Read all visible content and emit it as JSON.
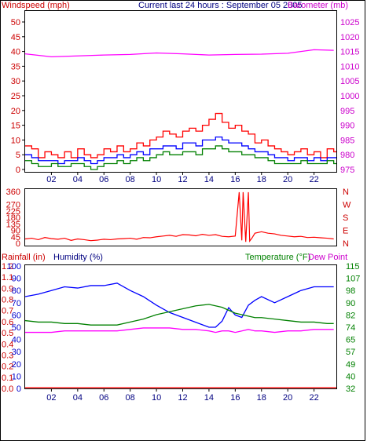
{
  "header": {
    "title": "Current last 24 hours : September 05 2005",
    "windspeed_label": "Windspeed (mph)",
    "barometer_label": "Barometer (mb)"
  },
  "colors": {
    "windspeed": "#ff0000",
    "gust": "#ff0000",
    "avg_wind": "#0000ff",
    "low_wind": "#008000",
    "barometer": "#ff00ff",
    "direction": "#ff0000",
    "humidity": "#0000ff",
    "temperature": "#008000",
    "dewpoint": "#ff00ff",
    "rainfall": "#ff0000",
    "x_axis": "#000080"
  },
  "chart_data": [
    {
      "type": "line",
      "name": "wind-and-barometer",
      "x_ticks": [
        "02",
        "04",
        "06",
        "08",
        "10",
        "12",
        "14",
        "16",
        "18",
        "20",
        "22"
      ],
      "x_hours": [
        2,
        4,
        6,
        8,
        10,
        12,
        14,
        16,
        18,
        20,
        22
      ],
      "x_range": [
        0,
        23.7
      ],
      "y_left": {
        "label": "Windspeed (mph)",
        "range": [
          0,
          50
        ],
        "ticks": [
          0,
          5,
          10,
          15,
          20,
          25,
          30,
          35,
          40,
          45,
          50
        ]
      },
      "y_right": {
        "label": "Barometer (mb)",
        "range": [
          975,
          1025
        ],
        "ticks": [
          975,
          980,
          985,
          990,
          995,
          1000,
          1005,
          1010,
          1015,
          1020,
          1025
        ]
      },
      "series": [
        {
          "name": "",
          "color": "#ff0000",
          "axis": "left",
          "style": "step",
          "x": [
            0,
            0.5,
            1,
            1.5,
            2,
            2.5,
            3,
            3.5,
            4,
            4.5,
            5,
            5.5,
            6,
            6.5,
            7,
            7.5,
            8,
            8.5,
            9,
            9.5,
            10,
            10.5,
            11,
            11.5,
            12,
            12.5,
            13,
            13.5,
            14,
            14.5,
            15,
            15.5,
            16,
            16.5,
            17,
            17.5,
            18,
            18.5,
            19,
            19.5,
            20,
            20.5,
            21,
            21.5,
            22,
            22.5,
            23,
            23.5
          ],
          "values": [
            8,
            7,
            4,
            6,
            5,
            4,
            6,
            4,
            7,
            5,
            4,
            5,
            7,
            6,
            8,
            6,
            7,
            9,
            8,
            10,
            11,
            13,
            12,
            11,
            13,
            14,
            13,
            15,
            17,
            19,
            16,
            14,
            15,
            13,
            12,
            9,
            10,
            8,
            7,
            6,
            5,
            6,
            7,
            5,
            6,
            4,
            7,
            6
          ]
        },
        {
          "name": "",
          "color": "#0000ff",
          "axis": "left",
          "style": "step",
          "x": [
            0,
            0.5,
            1,
            1.5,
            2,
            2.5,
            3,
            3.5,
            4,
            4.5,
            5,
            5.5,
            6,
            6.5,
            7,
            7.5,
            8,
            8.5,
            9,
            9.5,
            10,
            10.5,
            11,
            11.5,
            12,
            12.5,
            13,
            13.5,
            14,
            14.5,
            15,
            15.5,
            16,
            16.5,
            17,
            17.5,
            18,
            18.5,
            19,
            19.5,
            20,
            20.5,
            21,
            21.5,
            22,
            22.5,
            23,
            23.5
          ],
          "values": [
            5,
            4,
            3,
            3,
            3,
            2,
            3,
            3,
            4,
            3,
            2,
            3,
            4,
            4,
            5,
            4,
            5,
            6,
            5,
            7,
            7,
            8,
            8,
            7,
            9,
            9,
            8,
            10,
            10,
            11,
            10,
            9,
            9,
            8,
            7,
            6,
            6,
            5,
            4,
            4,
            3,
            4,
            4,
            3,
            4,
            3,
            4,
            4
          ]
        },
        {
          "name": "",
          "color": "#008000",
          "axis": "left",
          "style": "step",
          "x": [
            0,
            0.5,
            1,
            1.5,
            2,
            2.5,
            3,
            3.5,
            4,
            4.5,
            5,
            5.5,
            6,
            6.5,
            7,
            7.5,
            8,
            8.5,
            9,
            9.5,
            10,
            10.5,
            11,
            11.5,
            12,
            12.5,
            13,
            13.5,
            14,
            14.5,
            15,
            15.5,
            16,
            16.5,
            17,
            17.5,
            18,
            18.5,
            19,
            19.5,
            20,
            20.5,
            21,
            21.5,
            22,
            22.5,
            23,
            23.5
          ],
          "values": [
            3,
            2,
            1,
            1,
            2,
            1,
            1,
            2,
            2,
            1,
            0,
            1,
            2,
            2,
            3,
            2,
            3,
            4,
            3,
            4,
            5,
            6,
            5,
            5,
            6,
            6,
            5,
            7,
            7,
            8,
            7,
            6,
            6,
            5,
            5,
            4,
            4,
            3,
            2,
            2,
            2,
            2,
            3,
            2,
            2,
            2,
            3,
            2
          ]
        },
        {
          "name": "",
          "color": "#ff00ff",
          "axis": "right",
          "style": "line",
          "x": [
            0,
            2,
            4,
            6,
            8,
            10,
            12,
            14,
            16,
            18,
            20,
            22,
            23.5
          ],
          "values": [
            1014.2,
            1013.2,
            1013.5,
            1013.8,
            1014,
            1014.5,
            1014.2,
            1013.8,
            1014,
            1014.1,
            1014.4,
            1015.6,
            1015.4
          ]
        }
      ]
    },
    {
      "type": "line",
      "name": "wind-direction",
      "x_ticks": [],
      "x_range": [
        0,
        23.7
      ],
      "y_left": {
        "range": [
          0,
          360
        ],
        "ticks": [
          0,
          45,
          90,
          135,
          180,
          225,
          270,
          360
        ]
      },
      "y_right": {
        "labels": [
          "N",
          "E",
          "S",
          "W",
          "N"
        ],
        "values": [
          0,
          90,
          180,
          270,
          360
        ]
      },
      "series": [
        {
          "name": "",
          "color": "#ff0000",
          "x": [
            0,
            0.5,
            1,
            1.5,
            2,
            2.5,
            3,
            3.5,
            4,
            4.5,
            5,
            5.5,
            6,
            6.5,
            7,
            7.5,
            8,
            8.5,
            9,
            9.5,
            10,
            10.5,
            11,
            11.5,
            12,
            12.5,
            13,
            13.5,
            14,
            14.5,
            15,
            15.5,
            16,
            16.3,
            16.5,
            16.6,
            16.8,
            17,
            17.1,
            17.3,
            17.5,
            18,
            18.5,
            19,
            19.5,
            20,
            20.5,
            21,
            21.5,
            22,
            22.5,
            23,
            23.5
          ],
          "values": [
            30,
            35,
            25,
            40,
            32,
            28,
            35,
            20,
            30,
            25,
            18,
            22,
            28,
            25,
            30,
            32,
            35,
            28,
            40,
            38,
            45,
            50,
            55,
            48,
            60,
            58,
            52,
            62,
            55,
            60,
            48,
            45,
            50,
            355,
            20,
            355,
            10,
            355,
            15,
            40,
            70,
            80,
            70,
            65,
            55,
            50,
            45,
            48,
            40,
            42,
            38,
            35,
            30
          ]
        }
      ]
    },
    {
      "type": "line",
      "name": "humidity-temperature",
      "x_ticks": [
        "02",
        "04",
        "06",
        "08",
        "10",
        "12",
        "14",
        "16",
        "18",
        "20",
        "22"
      ],
      "x_hours": [
        2,
        4,
        6,
        8,
        10,
        12,
        14,
        16,
        18,
        20,
        22
      ],
      "x_range": [
        0,
        23.7
      ],
      "y_rain": {
        "label": "Rainfall (in)",
        "range": [
          0,
          1.2
        ],
        "ticks": [
          "0.0",
          "0.1",
          "0.2",
          "0.3",
          "0.4",
          "0.5",
          "0.6",
          "0.7",
          "0.8",
          "0.9",
          "1.1",
          "1.2"
        ]
      },
      "y_humidity": {
        "label": "Humidity (%)",
        "range": [
          0,
          100
        ],
        "ticks": [
          0,
          10,
          20,
          30,
          40,
          50,
          60,
          70,
          80,
          90,
          100
        ]
      },
      "y_temp": {
        "label": "Temperature (°F)",
        "range": [
          32,
          115
        ],
        "ticks": [
          32,
          40,
          49,
          57,
          65,
          74,
          82,
          90,
          98,
          107,
          115
        ]
      },
      "dewpoint_label": "Dew Point",
      "series": [
        {
          "name": "Humidity (%)",
          "color": "#0000ff",
          "axis": "humidity",
          "x": [
            0,
            1,
            2,
            3,
            4,
            5,
            6,
            7,
            8,
            9,
            10,
            11,
            12,
            13,
            13.5,
            14,
            14.5,
            15,
            15.5,
            16,
            16.5,
            17,
            17.5,
            18,
            19,
            20,
            21,
            22,
            23,
            23.5
          ],
          "values": [
            75,
            77,
            80,
            83,
            82,
            84,
            84,
            86,
            80,
            75,
            68,
            62,
            58,
            54,
            52,
            50,
            50,
            55,
            66,
            60,
            58,
            68,
            72,
            75,
            70,
            75,
            80,
            83,
            83,
            83
          ]
        },
        {
          "name": "Temperature (°F)",
          "color": "#008000",
          "axis": "temp",
          "x": [
            0,
            1,
            2,
            3,
            4,
            5,
            6,
            7,
            8,
            9,
            10,
            11,
            12,
            13,
            14,
            14.5,
            15,
            15.5,
            16,
            16.5,
            17,
            17.5,
            18,
            19,
            20,
            21,
            22,
            23,
            23.5
          ],
          "values": [
            78,
            77,
            77,
            76,
            76,
            75,
            75,
            75,
            77,
            79,
            82,
            84,
            86,
            88,
            89,
            88,
            87,
            85,
            83,
            82,
            81,
            80,
            80,
            79,
            78,
            77,
            77,
            76,
            76
          ]
        },
        {
          "name": "Dew Point",
          "color": "#ff00ff",
          "axis": "temp",
          "x": [
            0,
            1,
            2,
            3,
            4,
            5,
            6,
            7,
            8,
            9,
            10,
            11,
            12,
            13,
            14,
            14.5,
            15,
            15.5,
            16,
            16.5,
            17,
            17.5,
            18,
            19,
            20,
            21,
            22,
            23,
            23.5
          ],
          "values": [
            70,
            70,
            70,
            71,
            71,
            71,
            71,
            71,
            72,
            73,
            73,
            73,
            72,
            72,
            71,
            70,
            71,
            71,
            70,
            71,
            72,
            71,
            71,
            70,
            71,
            71,
            72,
            72,
            72
          ]
        },
        {
          "name": "Rainfall (in)",
          "color": "#ff0000",
          "axis": "rain",
          "x": [
            0,
            23.7
          ],
          "values": [
            0,
            0
          ]
        }
      ]
    }
  ]
}
